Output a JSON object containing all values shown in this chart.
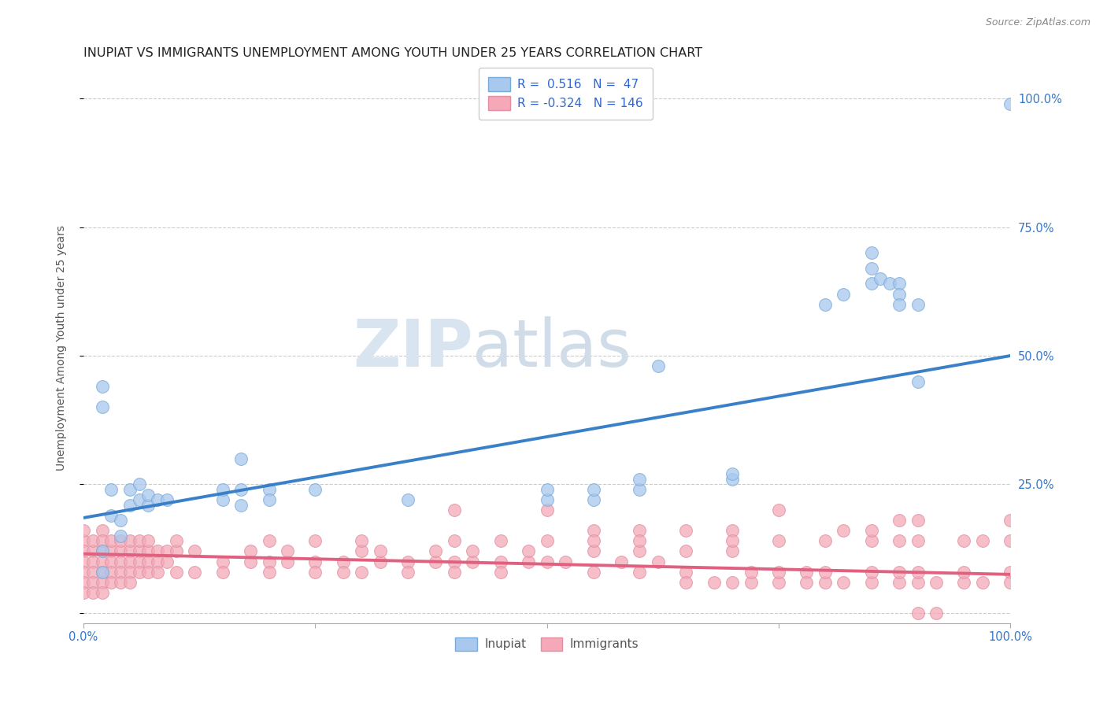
{
  "title": "INUPIAT VS IMMIGRANTS UNEMPLOYMENT AMONG YOUTH UNDER 25 YEARS CORRELATION CHART",
  "source": "Source: ZipAtlas.com",
  "ylabel": "Unemployment Among Youth under 25 years",
  "xlim": [
    0,
    1
  ],
  "ylim": [
    -0.02,
    1.05
  ],
  "xticks": [
    0.0,
    0.25,
    0.5,
    0.75,
    1.0
  ],
  "xticklabels": [
    "0.0%",
    "",
    "",
    "",
    "100.0%"
  ],
  "yticks_right": [
    0.0,
    0.25,
    0.5,
    0.75,
    1.0
  ],
  "yticklabels_right": [
    "",
    "25.0%",
    "50.0%",
    "75.0%",
    "100.0%"
  ],
  "inupiat_R": 0.516,
  "inupiat_N": 47,
  "immigrants_R": -0.324,
  "immigrants_N": 146,
  "blue_color": "#A8C8EE",
  "pink_color": "#F4A8B8",
  "blue_edge_color": "#7AAAD8",
  "pink_edge_color": "#E090A0",
  "blue_line_color": "#3A80C8",
  "pink_line_color": "#E06080",
  "watermark_zip": "ZIP",
  "watermark_atlas": "atlas",
  "inupiat_points": [
    [
      0.02,
      0.08
    ],
    [
      0.02,
      0.12
    ],
    [
      0.02,
      0.44
    ],
    [
      0.02,
      0.4
    ],
    [
      0.03,
      0.19
    ],
    [
      0.03,
      0.24
    ],
    [
      0.04,
      0.15
    ],
    [
      0.04,
      0.18
    ],
    [
      0.05,
      0.21
    ],
    [
      0.05,
      0.24
    ],
    [
      0.06,
      0.22
    ],
    [
      0.06,
      0.25
    ],
    [
      0.07,
      0.21
    ],
    [
      0.07,
      0.23
    ],
    [
      0.08,
      0.22
    ],
    [
      0.09,
      0.22
    ],
    [
      0.15,
      0.22
    ],
    [
      0.15,
      0.24
    ],
    [
      0.17,
      0.21
    ],
    [
      0.17,
      0.24
    ],
    [
      0.17,
      0.3
    ],
    [
      0.2,
      0.24
    ],
    [
      0.2,
      0.22
    ],
    [
      0.25,
      0.24
    ],
    [
      0.35,
      0.22
    ],
    [
      0.5,
      0.22
    ],
    [
      0.5,
      0.24
    ],
    [
      0.55,
      0.22
    ],
    [
      0.55,
      0.24
    ],
    [
      0.6,
      0.24
    ],
    [
      0.6,
      0.26
    ],
    [
      0.62,
      0.48
    ],
    [
      0.7,
      0.26
    ],
    [
      0.7,
      0.27
    ],
    [
      0.8,
      0.6
    ],
    [
      0.82,
      0.62
    ],
    [
      0.85,
      0.64
    ],
    [
      0.85,
      0.67
    ],
    [
      0.85,
      0.7
    ],
    [
      0.86,
      0.65
    ],
    [
      0.87,
      0.64
    ],
    [
      0.88,
      0.64
    ],
    [
      0.88,
      0.62
    ],
    [
      0.88,
      0.6
    ],
    [
      0.9,
      0.45
    ],
    [
      0.9,
      0.6
    ],
    [
      1.0,
      0.99
    ]
  ],
  "immigrants_points": [
    [
      0.0,
      0.14
    ],
    [
      0.0,
      0.12
    ],
    [
      0.0,
      0.1
    ],
    [
      0.0,
      0.08
    ],
    [
      0.0,
      0.06
    ],
    [
      0.0,
      0.04
    ],
    [
      0.0,
      0.16
    ],
    [
      0.01,
      0.12
    ],
    [
      0.01,
      0.1
    ],
    [
      0.01,
      0.08
    ],
    [
      0.01,
      0.06
    ],
    [
      0.01,
      0.04
    ],
    [
      0.01,
      0.14
    ],
    [
      0.02,
      0.12
    ],
    [
      0.02,
      0.1
    ],
    [
      0.02,
      0.08
    ],
    [
      0.02,
      0.06
    ],
    [
      0.02,
      0.04
    ],
    [
      0.02,
      0.16
    ],
    [
      0.02,
      0.14
    ],
    [
      0.03,
      0.12
    ],
    [
      0.03,
      0.1
    ],
    [
      0.03,
      0.08
    ],
    [
      0.03,
      0.06
    ],
    [
      0.03,
      0.14
    ],
    [
      0.04,
      0.12
    ],
    [
      0.04,
      0.1
    ],
    [
      0.04,
      0.08
    ],
    [
      0.04,
      0.06
    ],
    [
      0.04,
      0.14
    ],
    [
      0.05,
      0.12
    ],
    [
      0.05,
      0.1
    ],
    [
      0.05,
      0.08
    ],
    [
      0.05,
      0.06
    ],
    [
      0.05,
      0.14
    ],
    [
      0.06,
      0.12
    ],
    [
      0.06,
      0.1
    ],
    [
      0.06,
      0.08
    ],
    [
      0.06,
      0.14
    ],
    [
      0.07,
      0.12
    ],
    [
      0.07,
      0.1
    ],
    [
      0.07,
      0.08
    ],
    [
      0.07,
      0.14
    ],
    [
      0.08,
      0.12
    ],
    [
      0.08,
      0.1
    ],
    [
      0.08,
      0.08
    ],
    [
      0.09,
      0.12
    ],
    [
      0.09,
      0.1
    ],
    [
      0.1,
      0.12
    ],
    [
      0.1,
      0.08
    ],
    [
      0.1,
      0.14
    ],
    [
      0.12,
      0.12
    ],
    [
      0.12,
      0.08
    ],
    [
      0.15,
      0.1
    ],
    [
      0.15,
      0.08
    ],
    [
      0.18,
      0.1
    ],
    [
      0.18,
      0.12
    ],
    [
      0.2,
      0.1
    ],
    [
      0.2,
      0.08
    ],
    [
      0.2,
      0.14
    ],
    [
      0.22,
      0.1
    ],
    [
      0.22,
      0.12
    ],
    [
      0.25,
      0.1
    ],
    [
      0.25,
      0.08
    ],
    [
      0.25,
      0.14
    ],
    [
      0.28,
      0.1
    ],
    [
      0.28,
      0.08
    ],
    [
      0.3,
      0.12
    ],
    [
      0.3,
      0.08
    ],
    [
      0.3,
      0.14
    ],
    [
      0.32,
      0.1
    ],
    [
      0.32,
      0.12
    ],
    [
      0.35,
      0.1
    ],
    [
      0.35,
      0.08
    ],
    [
      0.38,
      0.1
    ],
    [
      0.38,
      0.12
    ],
    [
      0.4,
      0.1
    ],
    [
      0.4,
      0.08
    ],
    [
      0.4,
      0.14
    ],
    [
      0.4,
      0.2
    ],
    [
      0.42,
      0.1
    ],
    [
      0.42,
      0.12
    ],
    [
      0.45,
      0.1
    ],
    [
      0.45,
      0.08
    ],
    [
      0.45,
      0.14
    ],
    [
      0.48,
      0.1
    ],
    [
      0.48,
      0.12
    ],
    [
      0.5,
      0.14
    ],
    [
      0.5,
      0.1
    ],
    [
      0.5,
      0.2
    ],
    [
      0.52,
      0.1
    ],
    [
      0.55,
      0.12
    ],
    [
      0.55,
      0.08
    ],
    [
      0.55,
      0.16
    ],
    [
      0.55,
      0.14
    ],
    [
      0.58,
      0.1
    ],
    [
      0.6,
      0.12
    ],
    [
      0.6,
      0.08
    ],
    [
      0.6,
      0.16
    ],
    [
      0.6,
      0.14
    ],
    [
      0.62,
      0.1
    ],
    [
      0.65,
      0.12
    ],
    [
      0.65,
      0.08
    ],
    [
      0.65,
      0.16
    ],
    [
      0.65,
      0.06
    ],
    [
      0.68,
      0.06
    ],
    [
      0.7,
      0.12
    ],
    [
      0.7,
      0.06
    ],
    [
      0.7,
      0.16
    ],
    [
      0.7,
      0.14
    ],
    [
      0.72,
      0.06
    ],
    [
      0.72,
      0.08
    ],
    [
      0.75,
      0.06
    ],
    [
      0.75,
      0.08
    ],
    [
      0.75,
      0.14
    ],
    [
      0.75,
      0.2
    ],
    [
      0.78,
      0.08
    ],
    [
      0.78,
      0.06
    ],
    [
      0.8,
      0.06
    ],
    [
      0.8,
      0.08
    ],
    [
      0.8,
      0.14
    ],
    [
      0.82,
      0.06
    ],
    [
      0.82,
      0.16
    ],
    [
      0.85,
      0.06
    ],
    [
      0.85,
      0.08
    ],
    [
      0.85,
      0.14
    ],
    [
      0.85,
      0.16
    ],
    [
      0.88,
      0.06
    ],
    [
      0.88,
      0.08
    ],
    [
      0.88,
      0.14
    ],
    [
      0.88,
      0.18
    ],
    [
      0.9,
      0.06
    ],
    [
      0.9,
      0.08
    ],
    [
      0.9,
      0.14
    ],
    [
      0.9,
      0.18
    ],
    [
      0.9,
      0.0
    ],
    [
      0.92,
      0.06
    ],
    [
      0.92,
      0.0
    ],
    [
      0.95,
      0.06
    ],
    [
      0.95,
      0.08
    ],
    [
      0.95,
      0.14
    ],
    [
      0.97,
      0.14
    ],
    [
      0.97,
      0.06
    ],
    [
      1.0,
      0.18
    ],
    [
      1.0,
      0.14
    ],
    [
      1.0,
      0.08
    ],
    [
      1.0,
      0.06
    ]
  ],
  "grid_color": "#cccccc",
  "background_color": "#ffffff",
  "title_fontsize": 11.5,
  "axis_label_fontsize": 10,
  "tick_fontsize": 10.5,
  "source_fontsize": 9,
  "legend_fontsize": 11,
  "inupiat_line_y0": 0.185,
  "inupiat_line_y1": 0.5,
  "immigrants_line_y0": 0.115,
  "immigrants_line_y1": 0.075
}
